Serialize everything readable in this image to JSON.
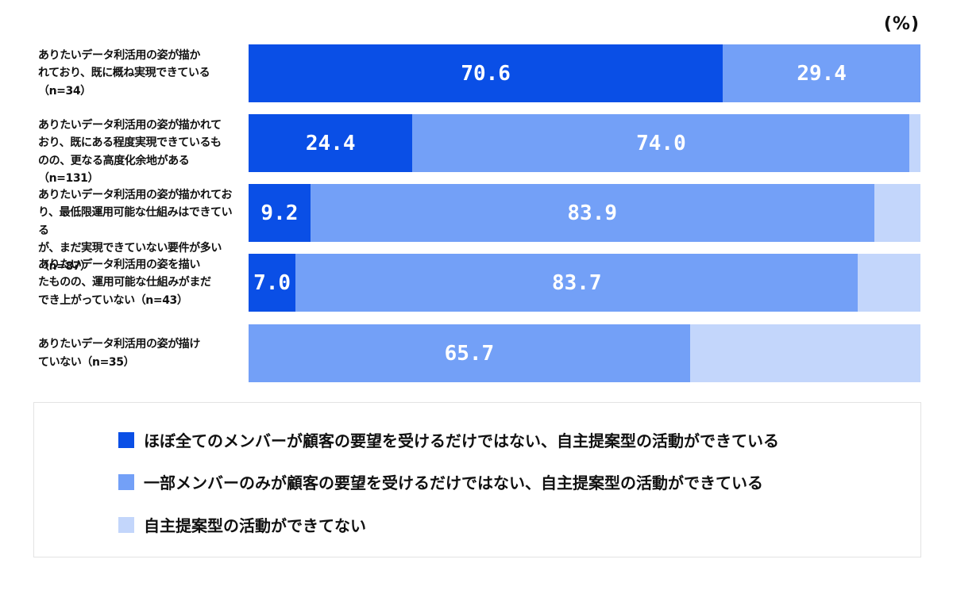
{
  "chart_data": {
    "type": "bar",
    "orientation": "horizontal",
    "stacked": true,
    "unit_label": "(%)",
    "xlim": [
      0,
      100
    ],
    "categories": [
      "ありたいデータ利活用の姿が描かれており、既に概ね実現できている（n=34）",
      "ありたいデータ利活用の姿が描かれており、既にある程度実現できているものの、更なる高度化余地がある（n=131）",
      "ありたいデータ利活用の姿が描かれており、最低限運用可能な仕組みはできているが、まだ実現できていない要件が多い（n=87）",
      "ありたいデータ利活用の姿を描いたものの、運用可能な仕組みがまだでき上がっていない（n=43）",
      "ありたいデータ利活用の姿が描けていない（n=35）"
    ],
    "category_lines": [
      [
        "ありたいデータ利活用の姿が描か",
        "れており、既に概ね実現できている",
        "（n=34）"
      ],
      [
        "ありたいデータ利活用の姿が描かれて",
        "おり、既にある程度実現できているも",
        "のの、更なる高度化余地がある（n=131）"
      ],
      [
        "ありたいデータ利活用の姿が描かれてお",
        "り、最低限運用可能な仕組みはできている",
        "が、まだ実現できていない要件が多い（n=87）"
      ],
      [
        "ありたいデータ利活用の姿を描い",
        "たものの、運用可能な仕組みがまだ",
        "でき上がっていない（n=43）"
      ],
      [
        "ありたいデータ利活用の姿が描け",
        "ていない（n=35）"
      ]
    ],
    "series": [
      {
        "name": "ほぼ全てのメンバーが顧客の要望を受けるだけではない、自主提案型の活動ができている",
        "color": "#0a4fe6",
        "values": [
          70.6,
          24.4,
          9.2,
          7.0,
          0
        ],
        "labels": [
          "70.6",
          "24.4",
          "9.2",
          "7.0",
          ""
        ]
      },
      {
        "name": "一部メンバーのみが顧客の要望を受けるだけではない、自主提案型の活動ができている",
        "color": "#73a0f7",
        "values": [
          29.4,
          74.0,
          83.9,
          83.7,
          65.7
        ],
        "labels": [
          "29.4",
          "74.0",
          "83.9",
          "83.7",
          "65.7"
        ]
      },
      {
        "name": "自主提案型の活動ができてない",
        "color": "#c3d6fb",
        "values": [
          0,
          1.6,
          6.9,
          9.3,
          34.3
        ],
        "labels": [
          "",
          "",
          "",
          "",
          ""
        ]
      }
    ],
    "legend_position": "bottom",
    "grid": false
  }
}
